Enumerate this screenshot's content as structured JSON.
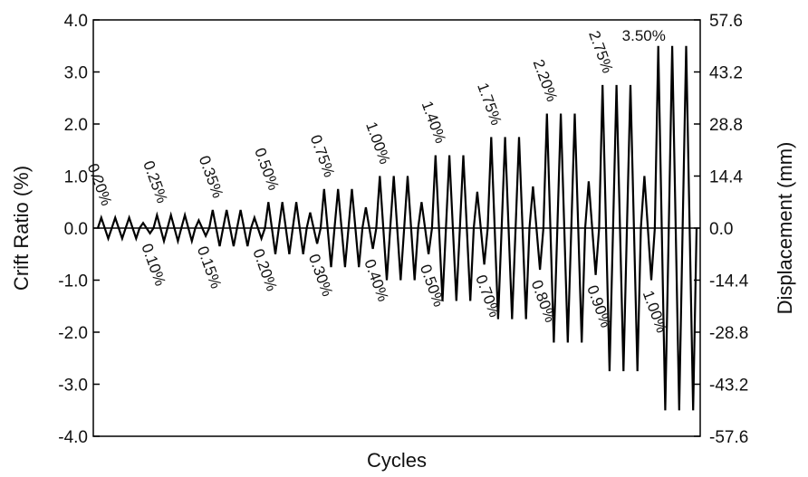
{
  "chart_data": {
    "type": "line",
    "title": "",
    "xlabel": "Cycles",
    "ylabel": "Crift Ratio (%)",
    "y2label": "Displacement (mm)",
    "ylim": [
      -4.0,
      4.0
    ],
    "y2lim": [
      -57.6,
      57.6
    ],
    "yticks": [
      "-4.0",
      "-3.0",
      "-2.0",
      "-1.0",
      "0.0",
      "1.0",
      "2.0",
      "3.0",
      "4.0"
    ],
    "y2ticks": [
      "-57.6",
      "-43.2",
      "-28.8",
      "-14.4",
      "0.0",
      "14.4",
      "28.8",
      "43.2",
      "57.6"
    ],
    "grid": false,
    "series": [
      {
        "name": "",
        "color": "#000000",
        "drift_levels": [
          0.2,
          0.1,
          0.25,
          0.15,
          0.35,
          0.2,
          0.5,
          0.3,
          0.75,
          0.4,
          1.0,
          0.5,
          1.4,
          0.7,
          1.75,
          0.8,
          2.2,
          0.9,
          2.75,
          1.0,
          3.5
        ],
        "cycles_per_level": [
          3,
          1,
          3,
          1,
          3,
          1,
          3,
          1,
          3,
          1,
          3,
          1,
          3,
          1,
          3,
          1,
          3,
          1,
          3,
          1,
          3
        ]
      }
    ],
    "annotations_upper": [
      {
        "text": "0.20%",
        "level": 0.2
      },
      {
        "text": "0.25%",
        "level": 0.25
      },
      {
        "text": "0.35%",
        "level": 0.35
      },
      {
        "text": "0.50%",
        "level": 0.5
      },
      {
        "text": "0.75%",
        "level": 0.75
      },
      {
        "text": "1.00%",
        "level": 1.0
      },
      {
        "text": "1.40%",
        "level": 1.4
      },
      {
        "text": "1.75%",
        "level": 1.75
      },
      {
        "text": "2.20%",
        "level": 2.2
      },
      {
        "text": "2.75%",
        "level": 2.75
      },
      {
        "text": "3.50%",
        "level": 3.5
      }
    ],
    "annotations_lower": [
      {
        "text": "0.10%",
        "level": 0.1
      },
      {
        "text": "0.15%",
        "level": 0.15
      },
      {
        "text": "0.20%",
        "level": 0.2
      },
      {
        "text": "0.30%",
        "level": 0.3
      },
      {
        "text": "0.40%",
        "level": 0.4
      },
      {
        "text": "0.50%",
        "level": 0.5
      },
      {
        "text": "0.70%",
        "level": 0.7
      },
      {
        "text": "0.80%",
        "level": 0.8
      },
      {
        "text": "0.90%",
        "level": 0.9
      },
      {
        "text": "1.00%",
        "level": 1.0
      }
    ]
  }
}
